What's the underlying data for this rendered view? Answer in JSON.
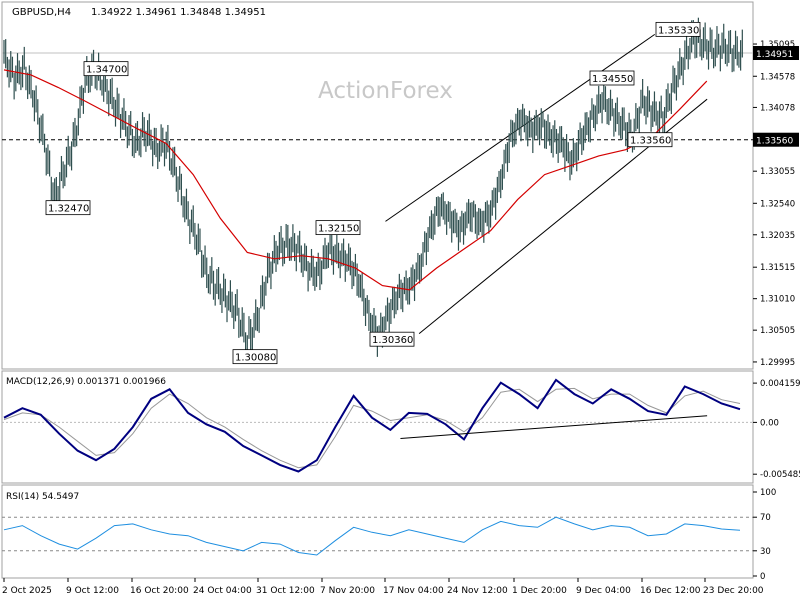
{
  "chart_data": [
    {
      "type": "candlestick",
      "header": {
        "symbol_timeframe": "GBPUSD,H4",
        "ohlc": "1.34922 1.34961 1.34848 1.34951"
      },
      "watermark": "ActionForex",
      "price_ticks": [
        "1.35095",
        "1.34578",
        "1.34078",
        "1.33580",
        "1.33055",
        "1.32540",
        "1.32035",
        "1.31515",
        "1.31010",
        "1.30505",
        "1.29995"
      ],
      "price_tick_values": [
        1.35095,
        1.34578,
        1.34078,
        1.3358,
        1.33055,
        1.3254,
        1.32035,
        1.31515,
        1.3101,
        1.30505,
        1.29995
      ],
      "ylim": [
        1.2993,
        1.3532
      ],
      "current_price_label": "1.34951",
      "current_price": 1.34951,
      "support_line_label": "1.33560",
      "support_line_value": 1.3356,
      "annotations": [
        {
          "label": "1.34700",
          "value": 1.347,
          "time": "11 Oct 2025"
        },
        {
          "label": "1.32470",
          "value": 1.3247,
          "time": "10 Oct 2025"
        },
        {
          "label": "1.32150",
          "value": 1.3215,
          "time": "14 Nov 2025"
        },
        {
          "label": "1.30080",
          "value": 1.3008,
          "time": "4 Nov 2025"
        },
        {
          "label": "1.30360",
          "value": 1.3036,
          "time": "21 Nov 2025"
        },
        {
          "label": "1.34550",
          "value": 1.3455,
          "time": "10 Dec 2025"
        },
        {
          "label": "1.33560",
          "value": 1.3356,
          "time": "16 Dec 2025"
        },
        {
          "label": "1.35330",
          "value": 1.3533,
          "time": "23 Dec 2025"
        }
      ],
      "ma_series": [
        [
          0,
          1.3468
        ],
        [
          16,
          1.346
        ],
        [
          32,
          1.344
        ],
        [
          48,
          1.3418
        ],
        [
          64,
          1.3395
        ],
        [
          80,
          1.3372
        ],
        [
          96,
          1.335
        ],
        [
          112,
          1.33
        ],
        [
          128,
          1.323
        ],
        [
          144,
          1.3175
        ],
        [
          160,
          1.3165
        ],
        [
          176,
          1.317
        ],
        [
          192,
          1.3165
        ],
        [
          208,
          1.315
        ],
        [
          224,
          1.3122
        ],
        [
          240,
          1.3115
        ],
        [
          256,
          1.315
        ],
        [
          272,
          1.318
        ],
        [
          288,
          1.321
        ],
        [
          304,
          1.326
        ],
        [
          320,
          1.33
        ],
        [
          336,
          1.3315
        ],
        [
          352,
          1.333
        ],
        [
          368,
          1.334
        ],
        [
          384,
          1.3362
        ],
        [
          400,
          1.3405
        ],
        [
          416,
          1.345
        ]
      ],
      "price_series": [
        [
          0,
          1.349
        ],
        [
          6,
          1.3455
        ],
        [
          12,
          1.347
        ],
        [
          18,
          1.342
        ],
        [
          24,
          1.335
        ],
        [
          30,
          1.326
        ],
        [
          36,
          1.331
        ],
        [
          42,
          1.336
        ],
        [
          48,
          1.345
        ],
        [
          54,
          1.347
        ],
        [
          60,
          1.344
        ],
        [
          66,
          1.341
        ],
        [
          72,
          1.338
        ],
        [
          78,
          1.335
        ],
        [
          84,
          1.337
        ],
        [
          90,
          1.334
        ],
        [
          96,
          1.335
        ],
        [
          102,
          1.33
        ],
        [
          108,
          1.324
        ],
        [
          114,
          1.32
        ],
        [
          120,
          1.314
        ],
        [
          126,
          1.312
        ],
        [
          132,
          1.31
        ],
        [
          138,
          1.308
        ],
        [
          144,
          1.303
        ],
        [
          150,
          1.307
        ],
        [
          156,
          1.314
        ],
        [
          162,
          1.318
        ],
        [
          168,
          1.319
        ],
        [
          174,
          1.318
        ],
        [
          180,
          1.315
        ],
        [
          186,
          1.314
        ],
        [
          192,
          1.318
        ],
        [
          198,
          1.317
        ],
        [
          204,
          1.316
        ],
        [
          210,
          1.313
        ],
        [
          216,
          1.307
        ],
        [
          222,
          1.304
        ],
        [
          228,
          1.308
        ],
        [
          234,
          1.311
        ],
        [
          240,
          1.312
        ],
        [
          246,
          1.315
        ],
        [
          252,
          1.321
        ],
        [
          258,
          1.325
        ],
        [
          264,
          1.323
        ],
        [
          270,
          1.321
        ],
        [
          276,
          1.324
        ],
        [
          282,
          1.322
        ],
        [
          288,
          1.324
        ],
        [
          294,
          1.329
        ],
        [
          300,
          1.336
        ],
        [
          306,
          1.339
        ],
        [
          312,
          1.337
        ],
        [
          318,
          1.338
        ],
        [
          324,
          1.336
        ],
        [
          330,
          1.335
        ],
        [
          336,
          1.332
        ],
        [
          342,
          1.336
        ],
        [
          348,
          1.339
        ],
        [
          354,
          1.342
        ],
        [
          360,
          1.34
        ],
        [
          366,
          1.338
        ],
        [
          372,
          1.336
        ],
        [
          378,
          1.342
        ],
        [
          384,
          1.34
        ],
        [
          390,
          1.339
        ],
        [
          396,
          1.344
        ],
        [
          402,
          1.348
        ],
        [
          408,
          1.352
        ],
        [
          414,
          1.351
        ],
        [
          420,
          1.35
        ],
        [
          426,
          1.3505
        ],
        [
          432,
          1.3495
        ],
        [
          438,
          1.3495
        ]
      ],
      "channel_lines": [
        {
          "from": [
            1.3225,
            0.51
          ],
          "to": [
            1.3525,
            0.87
          ]
        },
        {
          "from": [
            1.3045,
            0.555
          ],
          "to": [
            1.3421,
            0.94
          ]
        }
      ],
      "x_tick_labels": [
        "2 Oct 2025",
        "9 Oct 12:00",
        "16 Oct 20:00",
        "24 Oct 04:00",
        "31 Oct 12:00",
        "7 Nov 20:00",
        "17 Nov 04:00",
        "24 Nov 12:00",
        "1 Dec 20:00",
        "9 Dec 04:00",
        "16 Dec 12:00",
        "23 Dec 20:00"
      ]
    },
    {
      "type": "line",
      "title": "MACD(12,26,9) 0.001371 0.001966",
      "ticks": [
        "0.004159",
        "0.00",
        "-0.005485"
      ],
      "tick_values": [
        0.004159,
        0.0,
        -0.005485
      ],
      "ylim": [
        -0.0061,
        0.0047
      ],
      "series": [
        {
          "name": "MACD",
          "color": "#000080",
          "values": [
            0.0005,
            0.0015,
            0.0008,
            -0.0012,
            -0.003,
            -0.004,
            -0.0028,
            -0.0005,
            0.0025,
            0.0035,
            0.001,
            -0.0002,
            -0.001,
            -0.0025,
            -0.0035,
            -0.0045,
            -0.0052,
            -0.004,
            -0.0005,
            0.0028,
            0.0005,
            -0.0008,
            0.001,
            0.0009,
            -0.0002,
            -0.0018,
            0.0015,
            0.0042,
            0.003,
            0.0015,
            0.0045,
            0.003,
            0.002,
            0.0035,
            0.0025,
            0.0012,
            0.0008,
            0.0038,
            0.003,
            0.002,
            0.0014
          ]
        },
        {
          "name": "Signal",
          "color": "#999999",
          "values": [
            0.0003,
            0.001,
            0.0008,
            -0.0005,
            -0.002,
            -0.0035,
            -0.0032,
            -0.0012,
            0.0015,
            0.003,
            0.002,
            0.0005,
            -0.0005,
            -0.0018,
            -0.003,
            -0.004,
            -0.0048,
            -0.0045,
            -0.0015,
            0.0018,
            0.0012,
            0.0002,
            0.0005,
            0.0008,
            0.0002,
            -0.001,
            0.0005,
            0.0032,
            0.0035,
            0.0022,
            0.0035,
            0.0036,
            0.0025,
            0.003,
            0.003,
            0.0018,
            0.001,
            0.0028,
            0.0033,
            0.0024,
            0.002
          ]
        }
      ],
      "trendline": {
        "from": [
          -0.0017,
          0.53
        ],
        "to": [
          0.0007,
          0.94
        ]
      }
    },
    {
      "type": "line",
      "title": "RSI(14) 54.5497",
      "ticks": [
        "100",
        "70",
        "30",
        "0"
      ],
      "tick_values": [
        100,
        70,
        30,
        0
      ],
      "ylim": [
        0,
        100
      ],
      "series": [
        {
          "name": "RSI",
          "color": "#1f8fe0",
          "values": [
            55,
            60,
            48,
            38,
            32,
            45,
            60,
            62,
            55,
            50,
            48,
            40,
            35,
            30,
            40,
            38,
            28,
            25,
            42,
            58,
            52,
            48,
            55,
            50,
            45,
            40,
            55,
            65,
            60,
            58,
            70,
            62,
            55,
            60,
            58,
            48,
            50,
            62,
            60,
            56,
            54.5
          ]
        }
      ]
    }
  ]
}
